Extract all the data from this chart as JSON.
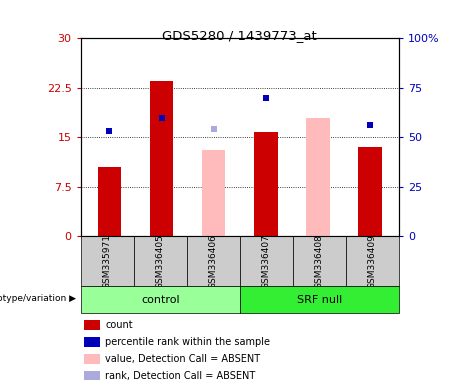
{
  "title": "GDS5280 / 1439773_at",
  "samples": [
    "GSM335971",
    "GSM336405",
    "GSM336406",
    "GSM336407",
    "GSM336408",
    "GSM336409"
  ],
  "red_bar_values": [
    10.5,
    23.5,
    null,
    15.8,
    null,
    13.5
  ],
  "blue_dot_values_pct": [
    53.0,
    60.0,
    null,
    70.0,
    null,
    56.0
  ],
  "pink_bar_values": [
    null,
    null,
    13.0,
    null,
    18.0,
    null
  ],
  "lavender_dot_pct": [
    null,
    null,
    54.0,
    null,
    null,
    null
  ],
  "ylim_left": [
    0,
    30
  ],
  "ylim_right": [
    0,
    100
  ],
  "left_ticks": [
    0,
    7.5,
    15,
    22.5,
    30
  ],
  "right_ticks": [
    0,
    25,
    50,
    75,
    100
  ],
  "left_tick_labels": [
    "0",
    "7.5",
    "15",
    "22.5",
    "30"
  ],
  "right_tick_labels": [
    "0",
    "25",
    "50",
    "75",
    "100%"
  ],
  "red_bar_color": "#cc0000",
  "blue_dot_color": "#0000bb",
  "pink_bar_color": "#ffbbbb",
  "lavender_dot_color": "#aaaadd",
  "control_bg": "#99ff99",
  "srfnull_bg": "#33ee33",
  "sample_bg": "#cccccc",
  "plot_bg": "#ffffff",
  "bar_width": 0.45,
  "legend_items": [
    {
      "label": "count",
      "color": "#cc0000",
      "type": "square"
    },
    {
      "label": "percentile rank within the sample",
      "color": "#0000bb",
      "type": "square"
    },
    {
      "label": "value, Detection Call = ABSENT",
      "color": "#ffbbbb",
      "type": "square"
    },
    {
      "label": "rank, Detection Call = ABSENT",
      "color": "#aaaadd",
      "type": "square"
    }
  ]
}
